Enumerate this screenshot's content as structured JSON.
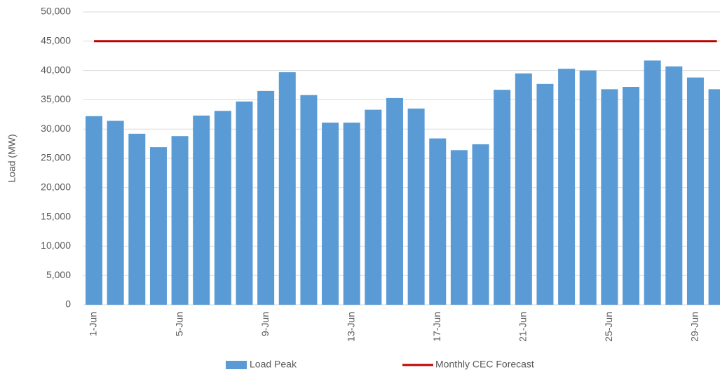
{
  "chart_data": {
    "type": "bar",
    "y_label": "Load (MW)",
    "categories": [
      "1-Jun",
      null,
      null,
      null,
      "5-Jun",
      null,
      null,
      null,
      "9-Jun",
      null,
      null,
      null,
      "13-Jun",
      null,
      null,
      null,
      "17-Jun",
      null,
      null,
      null,
      "21-Jun",
      null,
      null,
      null,
      "25-Jun",
      null,
      null,
      null,
      "29-Jun",
      null
    ],
    "series": [
      {
        "name": "Load Peak",
        "color": "#5b9bd5",
        "type": "bar",
        "values": [
          32200,
          31400,
          29200,
          26900,
          28800,
          32300,
          33100,
          34700,
          36500,
          39700,
          35800,
          31100,
          31100,
          33300,
          35300,
          33500,
          28400,
          26400,
          27400,
          36700,
          39500,
          37700,
          40300,
          40000,
          36800,
          37200,
          41700,
          40700,
          38800,
          36800
        ]
      },
      {
        "name": "Monthly CEC Forecast",
        "color": "#c00000",
        "type": "line",
        "values": [
          45000,
          45000,
          45000,
          45000,
          45000,
          45000,
          45000,
          45000,
          45000,
          45000,
          45000,
          45000,
          45000,
          45000,
          45000,
          45000,
          45000,
          45000,
          45000,
          45000,
          45000,
          45000,
          45000,
          45000,
          45000,
          45000,
          45000,
          45000,
          45000,
          45000
        ]
      }
    ],
    "ylim": [
      0,
      50000
    ],
    "yticks": [
      0,
      {
        "value": 5000,
        "label": "5,000"
      },
      {
        "value": 10000,
        "label": "10,000"
      },
      {
        "value": 15000,
        "label": "15,000"
      },
      {
        "value": 20000,
        "label": "20,000"
      },
      {
        "value": 25000,
        "label": "25,000"
      },
      {
        "value": 30000,
        "label": "30,000"
      },
      {
        "value": 35000,
        "label": "35,000"
      },
      {
        "value": 40000,
        "label": "40,000"
      },
      {
        "value": 45000,
        "label": "45,000"
      },
      {
        "value": 50000,
        "label": "50,000"
      }
    ],
    "grid": true,
    "legend": "bottom"
  }
}
